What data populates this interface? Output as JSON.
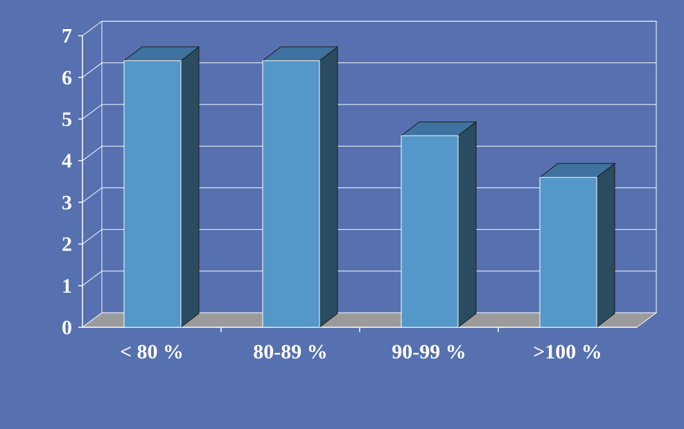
{
  "chart_data": {
    "type": "bar",
    "style": "3d-column",
    "categories": [
      "< 80 %",
      "80-89 %",
      "90-99 %",
      ">100 %"
    ],
    "values": [
      6.4,
      6.4,
      4.6,
      3.6
    ],
    "ylim": [
      0,
      7
    ],
    "yticks": [
      "0",
      "1",
      "2",
      "3",
      "4",
      "5",
      "6",
      "7"
    ],
    "title": "",
    "xlabel": "",
    "ylabel": "",
    "grid": true,
    "legend": "none",
    "colors": {
      "background": "#5670b0",
      "bar_front": "#5497c9",
      "bar_side": "#2a4b60",
      "bar_top": "#3f729e",
      "floor": "#9b9b9b",
      "gridline": "#ffffff",
      "text": "#ffffff"
    }
  }
}
